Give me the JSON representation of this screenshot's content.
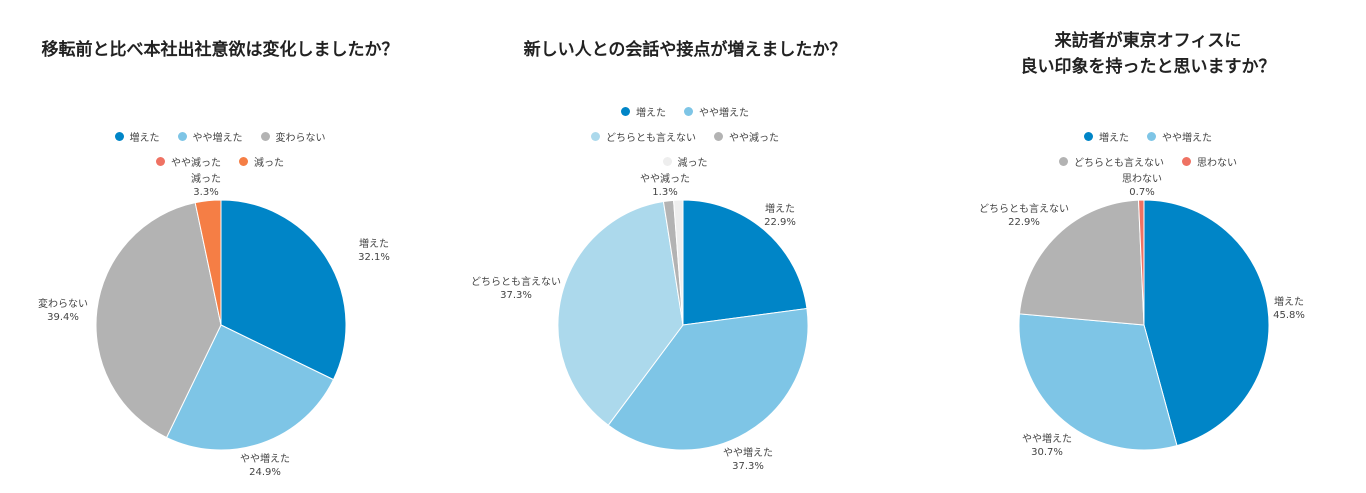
{
  "chart_data": [
    {
      "type": "pie",
      "title": "移転前と比べ本社出社意欲は変化しましたか？",
      "legend_rows": [
        [
          0,
          1,
          2
        ],
        [
          3,
          4
        ]
      ],
      "slices": [
        {
          "label": "増えた",
          "value": 32.1,
          "value_label": "32.1%",
          "color": "#0085c7"
        },
        {
          "label": "やや増えた",
          "value": 24.9,
          "value_label": "24.9%",
          "color": "#7ec5e6"
        },
        {
          "label": "変わらない",
          "value": 39.4,
          "value_label": "39.4%",
          "color": "#b3b3b3"
        },
        {
          "label": "やや減った",
          "value": 0.0,
          "value_label": "",
          "color": "#ef7263"
        },
        {
          "label": "減った",
          "value": 3.3,
          "value_label": "3.3%",
          "color": "#f57e45"
        }
      ]
    },
    {
      "type": "pie",
      "title": "新しい人との会話や接点が増えましたか？",
      "legend_rows": [
        [
          0,
          1
        ],
        [
          2,
          3
        ],
        [
          4
        ]
      ],
      "slices": [
        {
          "label": "増えた",
          "value": 22.9,
          "value_label": "22.9%",
          "color": "#0085c7"
        },
        {
          "label": "やや増えた",
          "value": 37.3,
          "value_label": "37.3%",
          "color": "#7ec5e6"
        },
        {
          "label": "どちらとも言えない",
          "value": 37.3,
          "value_label": "37.3%",
          "color": "#acd9ec"
        },
        {
          "label": "やや減った",
          "value": 1.3,
          "value_label": "1.3%",
          "color": "#b3b3b3"
        },
        {
          "label": "減った",
          "value": 1.2,
          "value_label": "",
          "color": "#eeeeee"
        }
      ]
    },
    {
      "type": "pie",
      "title_lines": [
        "来訪者が東京オフィスに",
        "良い印象を持ったと思いますか？"
      ],
      "legend_rows": [
        [
          0,
          1
        ],
        [
          2,
          3
        ]
      ],
      "slices": [
        {
          "label": "増えた",
          "value": 45.8,
          "value_label": "45.8%",
          "color": "#0085c7"
        },
        {
          "label": "やや増えた",
          "value": 30.7,
          "value_label": "30.7%",
          "color": "#7ec5e6"
        },
        {
          "label": "どちらとも言えない",
          "value": 22.9,
          "value_label": "22.9%",
          "color": "#b3b3b3"
        },
        {
          "label": "思わない",
          "value": 0.7,
          "value_label": "0.7%",
          "color": "#ef7263"
        }
      ]
    }
  ]
}
